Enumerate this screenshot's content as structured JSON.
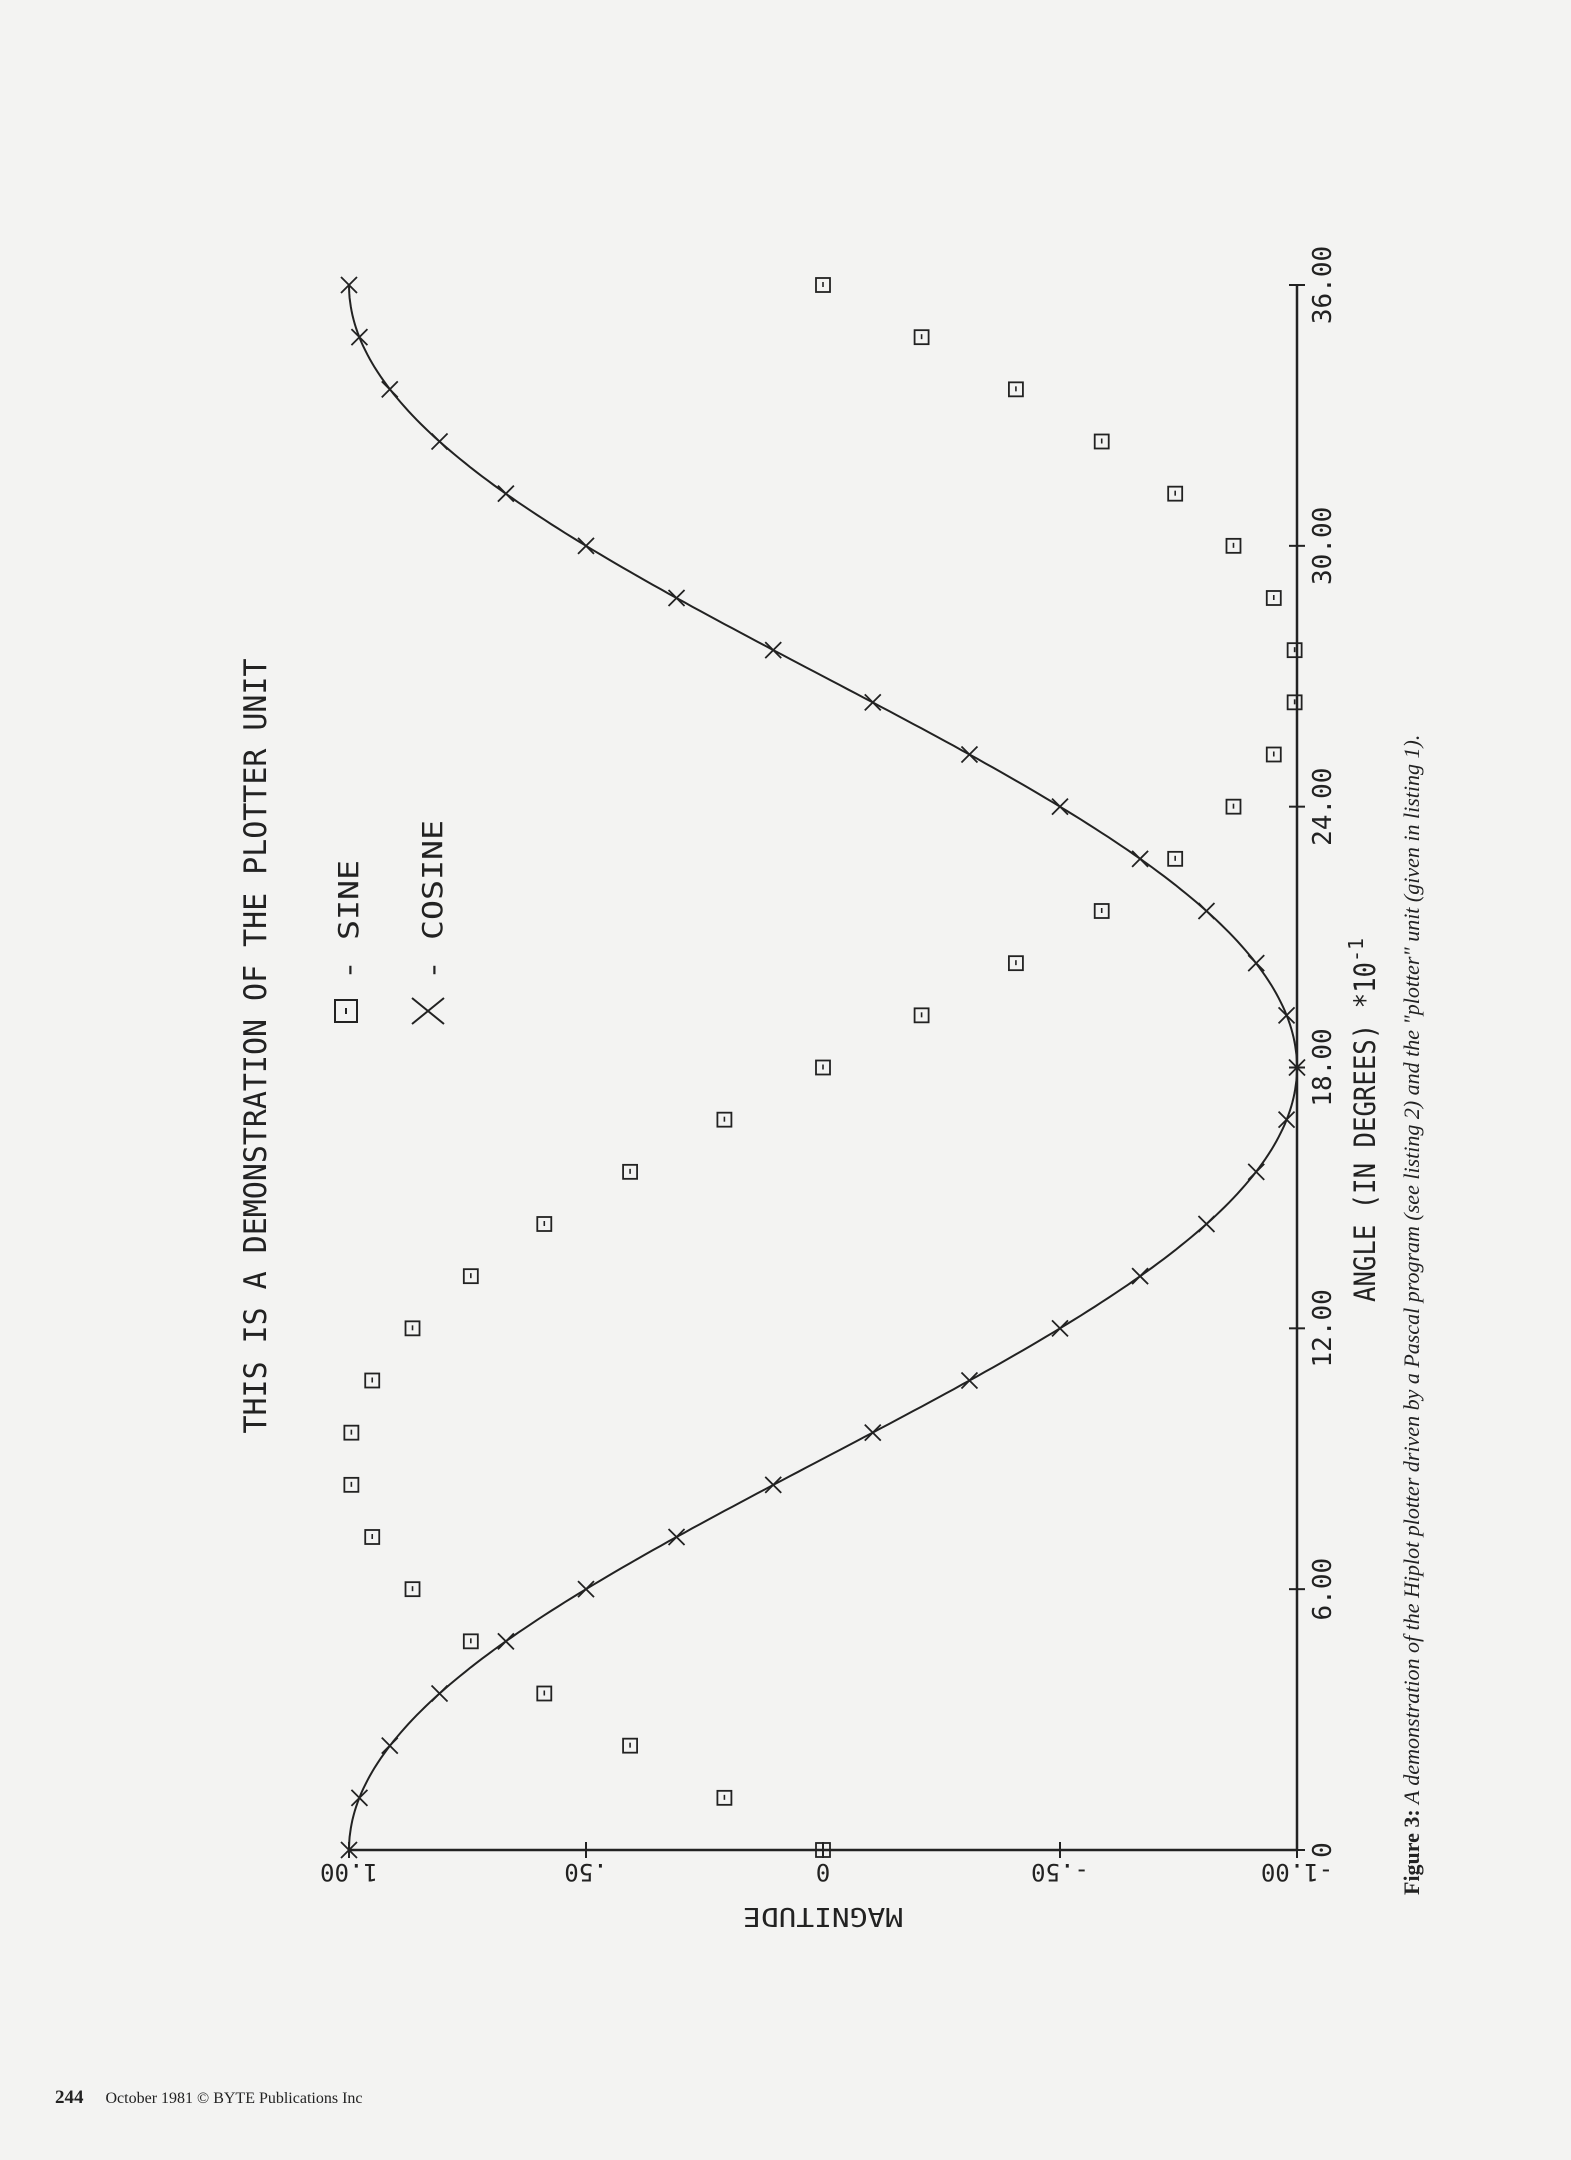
{
  "chart_data": {
    "type": "scatter",
    "title": "THIS IS A DEMONSTRATION OF THE PLOTTER UNIT",
    "xlabel": "ANGLE (IN DEGREES) *10",
    "xlabel_exponent": "-1",
    "ylabel": "MAGNITUDE",
    "xlim": [
      0,
      36
    ],
    "ylim": [
      -1,
      1
    ],
    "x_ticks": [
      "0",
      "6.00",
      "12.00",
      "18.00",
      "24.00",
      "30.00",
      "36.00"
    ],
    "x_tick_values": [
      0,
      6,
      12,
      18,
      24,
      30,
      36
    ],
    "y_ticks": [
      "-1.00",
      "-.50",
      "0",
      ".50",
      "1.00"
    ],
    "y_tick_values": [
      -1,
      -0.5,
      0,
      0.5,
      1
    ],
    "grid": false,
    "orientation": "rotated 90 degrees counterclockwise on page",
    "legend": [
      {
        "marker": "square",
        "label": "- SINE"
      },
      {
        "marker": "x",
        "label": "- COSINE"
      }
    ],
    "x": [
      0,
      1.2,
      2.4,
      3.6,
      4.8,
      6,
      7.2,
      8.4,
      9.6,
      10.8,
      12,
      13.2,
      14.4,
      15.6,
      16.8,
      18,
      19.2,
      20.4,
      21.6,
      22.8,
      24,
      25.2,
      26.4,
      27.6,
      28.8,
      30,
      31.2,
      32.4,
      33.6,
      34.8,
      36
    ],
    "series": [
      {
        "name": "SINE",
        "marker": "square",
        "line": false,
        "values": [
          0,
          0.208,
          0.407,
          0.588,
          0.743,
          0.866,
          0.951,
          0.995,
          0.995,
          0.951,
          0.866,
          0.743,
          0.588,
          0.407,
          0.208,
          0,
          -0.208,
          -0.407,
          -0.588,
          -0.743,
          -0.866,
          -0.951,
          -0.995,
          -0.995,
          -0.951,
          -0.866,
          -0.743,
          -0.588,
          -0.407,
          -0.208,
          0
        ]
      },
      {
        "name": "COSINE",
        "marker": "x",
        "line": true,
        "values": [
          1,
          0.978,
          0.914,
          0.809,
          0.669,
          0.5,
          0.309,
          0.105,
          -0.105,
          -0.309,
          -0.5,
          -0.669,
          -0.809,
          -0.914,
          -0.978,
          -1,
          -0.978,
          -0.914,
          -0.809,
          -0.669,
          -0.5,
          -0.309,
          -0.105,
          0.105,
          0.309,
          0.5,
          0.669,
          0.809,
          0.914,
          0.978,
          1
        ]
      }
    ]
  },
  "caption": {
    "label": "Figure 3:",
    "text": " A demonstration of the Hiplot plotter driven by a Pascal program (see listing 2) and the \"plotter\" unit (given in listing 1)."
  },
  "footer": {
    "page_number": "244",
    "text": "October 1981 © BYTE Publications Inc"
  }
}
